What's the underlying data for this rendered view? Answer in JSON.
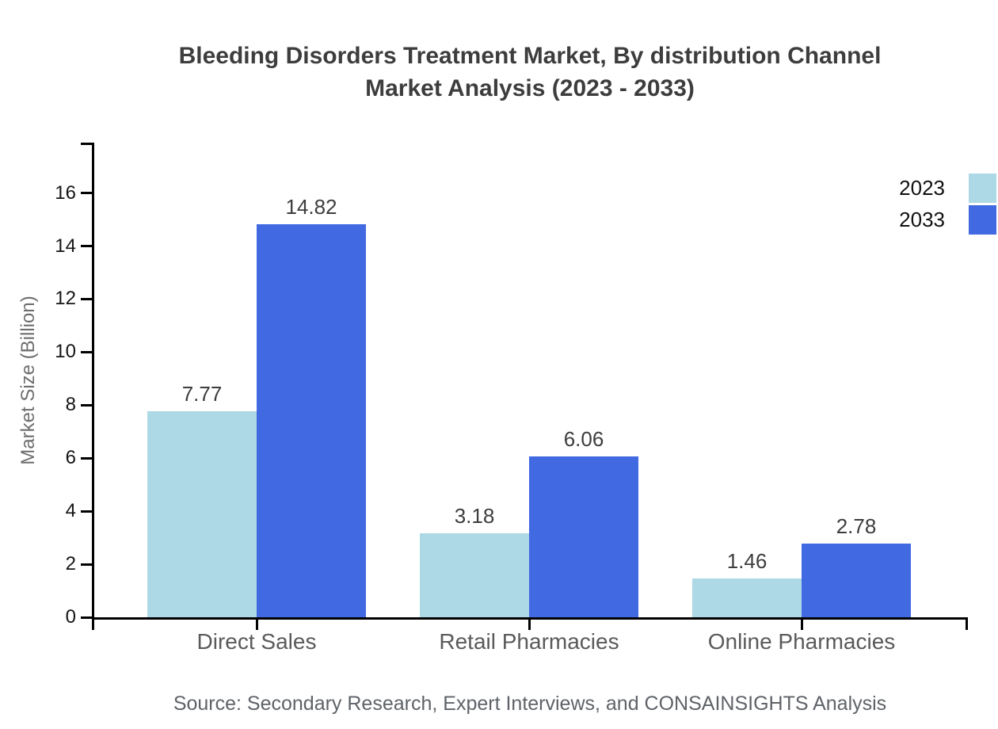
{
  "chart_data": {
    "type": "bar",
    "title_line1": "Bleeding Disorders Treatment Market, By distribution Channel",
    "title_line2": "Market Analysis (2023 - 2033)",
    "ylabel": "Market Size (Billion)",
    "categories": [
      "Direct Sales",
      "Retail Pharmacies",
      "Online Pharmacies"
    ],
    "series": [
      {
        "name": "2023",
        "color": "#ADD8E6",
        "values": [
          7.77,
          3.18,
          1.46
        ]
      },
      {
        "name": "2033",
        "color": "#4169E1",
        "values": [
          14.82,
          6.06,
          2.78
        ]
      }
    ],
    "yticks": [
      0,
      2,
      4,
      6,
      8,
      10,
      12,
      14,
      16
    ],
    "ylim": [
      0,
      17.9
    ],
    "grid": false,
    "legend_position": "top-right",
    "axis_color": "#000000",
    "source": "Source: Secondary Research, Expert Interviews, and CONSAINSIGHTS Analysis"
  }
}
